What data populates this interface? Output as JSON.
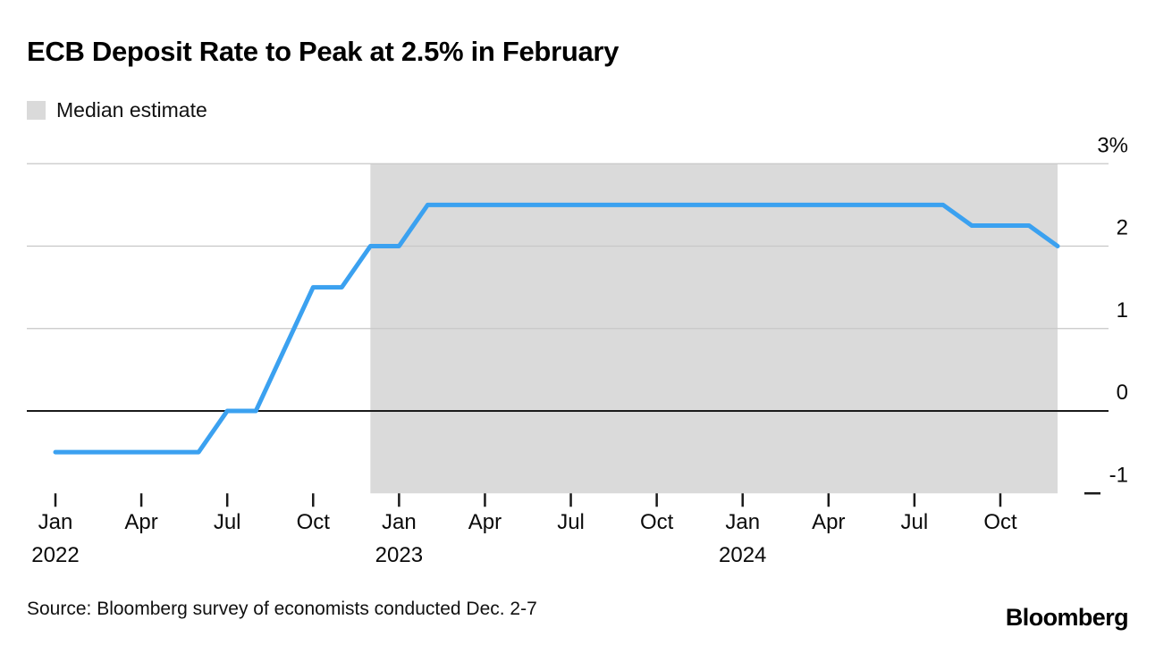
{
  "header": {
    "title": "ECB Deposit Rate to Peak at 2.5% in February",
    "legend_label": "Median estimate"
  },
  "footer": {
    "source": "Source: Bloomberg survey of economists conducted Dec. 2-7",
    "brand": "Bloomberg"
  },
  "chart_data": {
    "type": "line",
    "title": "ECB Deposit Rate to Peak at 2.5% in February",
    "unit": "%",
    "grid": true,
    "legend_position": "top-left",
    "legend_entries": [
      "Median estimate"
    ],
    "x": [
      "Jan 2022",
      "Feb 2022",
      "Mar 2022",
      "Apr 2022",
      "May 2022",
      "Jun 2022",
      "Jul 2022",
      "Aug 2022",
      "Sep 2022",
      "Oct 2022",
      "Nov 2022",
      "Dec 2022",
      "Jan 2023",
      "Feb 2023",
      "Mar 2023",
      "Apr 2023",
      "May 2023",
      "Jun 2023",
      "Jul 2023",
      "Aug 2023",
      "Sep 2023",
      "Oct 2023",
      "Nov 2023",
      "Dec 2023",
      "Jan 2024",
      "Feb 2024",
      "Mar 2024",
      "Apr 2024",
      "May 2024",
      "Jun 2024",
      "Jul 2024",
      "Aug 2024",
      "Sep 2024",
      "Oct 2024",
      "Nov 2024",
      "Dec 2024"
    ],
    "values": [
      -0.5,
      -0.5,
      -0.5,
      -0.5,
      -0.5,
      -0.5,
      0,
      0,
      0.75,
      1.5,
      1.5,
      2,
      2,
      2.5,
      2.5,
      2.5,
      2.5,
      2.5,
      2.5,
      2.5,
      2.5,
      2.5,
      2.5,
      2.5,
      2.5,
      2.5,
      2.5,
      2.5,
      2.5,
      2.5,
      2.5,
      2.5,
      2.25,
      2.25,
      2.25,
      2
    ],
    "ylim": [
      -1,
      3
    ],
    "yticks": [
      {
        "value": 3,
        "label": "3%"
      },
      {
        "value": 2,
        "label": "2"
      },
      {
        "value": 1,
        "label": "1"
      },
      {
        "value": 0,
        "label": "0"
      },
      {
        "value": -1,
        "label": "-1"
      }
    ],
    "xticks": [
      {
        "index": 0,
        "label": "Jan",
        "year": "2022"
      },
      {
        "index": 3,
        "label": "Apr"
      },
      {
        "index": 6,
        "label": "Jul"
      },
      {
        "index": 9,
        "label": "Oct"
      },
      {
        "index": 12,
        "label": "Jan",
        "year": "2023"
      },
      {
        "index": 15,
        "label": "Apr"
      },
      {
        "index": 18,
        "label": "Jul"
      },
      {
        "index": 21,
        "label": "Oct"
      },
      {
        "index": 24,
        "label": "Jan",
        "year": "2024"
      },
      {
        "index": 27,
        "label": "Apr"
      },
      {
        "index": 30,
        "label": "Jul"
      },
      {
        "index": 33,
        "label": "Oct"
      }
    ],
    "shaded_region": {
      "label": "Median estimate",
      "start_index": 11,
      "end_index": 35
    },
    "colors": {
      "line": "#3BA1F0",
      "region": "#DADADA",
      "gridline": "#C7C7C7",
      "zero_line": "#1A1A1A",
      "text": "#0A0A0A"
    }
  }
}
